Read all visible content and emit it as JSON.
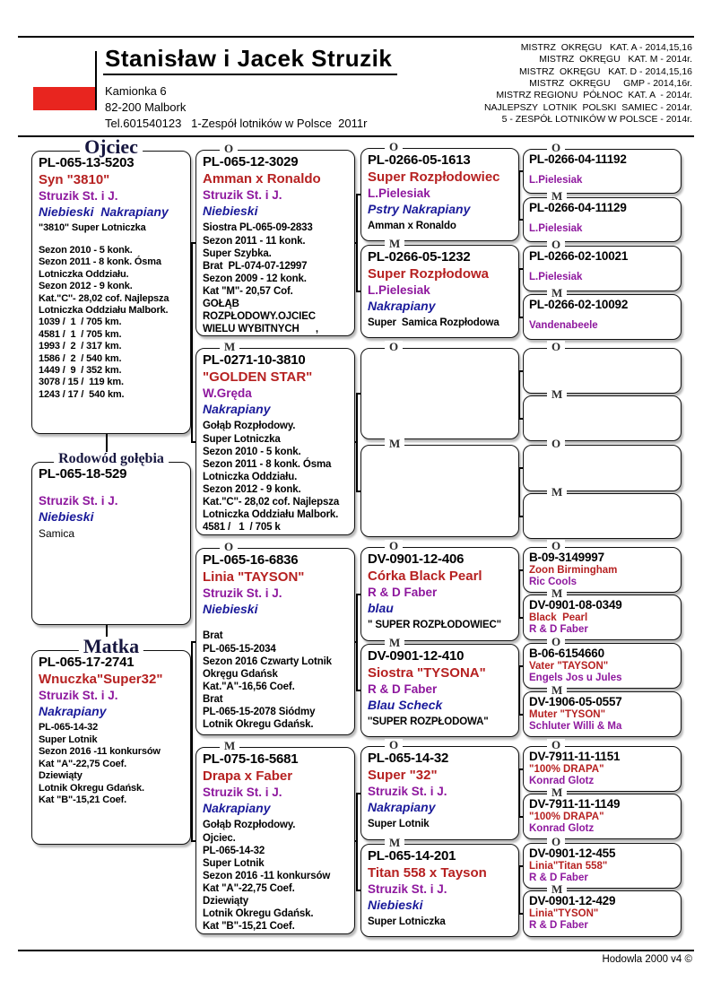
{
  "header": {
    "title": "Stanisław i Jacek Struzik",
    "address": "Kamionka 6\n82-200 Malbork\nTel.601540123   1-Zespół lotników w Polsce  2011r",
    "achievements": [
      "MISTRZ  OKRĘGU   KAT. A - 2014,15,16",
      "MISTRZ  OKRĘGU   KAT. M - 2014r.",
      "MISTRZ  OKRĘGU   KAT. D - 2014,15,16",
      "MISTRZ  OKRĘGU     GMP - 2014,16r.",
      "MISTRZ REGIONU  PÓŁNOC  KAT. A  - 2014r.",
      "NAJLEPSZY  LOTNIK  POLSKI  SAMIEC - 2014r.",
      "5 - ZESPÓŁ LOTNIKÓW W POLSCE - 2014r."
    ]
  },
  "footer": {
    "credit": "Hodowla 2000 v4 ©"
  },
  "colors": {
    "flag": "#e8251f",
    "red": "#b62121",
    "purple": "#8e189e",
    "navy": "#1a1a9a",
    "titlecol": "#16163f"
  },
  "boxes": {
    "father": {
      "label": "Ojciec",
      "lines": [
        [
          "ring",
          "PL-065-13-5203"
        ],
        [
          "name",
          "Syn \"3810\""
        ],
        [
          "breeder",
          "Struzik St. i J."
        ],
        [
          "color",
          "Niebieski  Nakrapiany"
        ],
        [
          "info",
          "\"3810\" Super Lotniczka"
        ],
        [
          "gap",
          ""
        ],
        [
          "info",
          "Sezon 2010 - 5 konk."
        ],
        [
          "info",
          "Sezon 2011 - 8 konk. Ósma"
        ],
        [
          "info",
          "Lotniczka Oddziału."
        ],
        [
          "info",
          "Sezon 2012 - 9 konk."
        ],
        [
          "info",
          "Kat.\"C''- 28,02 cof. Najlepsza"
        ],
        [
          "info",
          "Lotniczka Oddziału Malbork."
        ],
        [
          "info",
          "1039 /  1  / 705 km."
        ],
        [
          "info",
          "4581 /  1  / 705 km."
        ],
        [
          "info",
          "1993 /  2  / 317 km."
        ],
        [
          "info",
          "1586 /  2  / 540 km."
        ],
        [
          "info",
          "1449 /  9  / 352 km."
        ],
        [
          "info",
          "3078 / 15 /  119 km."
        ],
        [
          "info",
          "1243 / 17 /  540 km."
        ]
      ]
    },
    "pedigree": {
      "label": "Rodowód gołębia",
      "lines": [
        [
          "ring",
          "PL-065-18-529"
        ],
        [
          "gap",
          ""
        ],
        [
          "breeder",
          "Struzik St. i J."
        ],
        [
          "color",
          "Niebieski"
        ],
        [
          "text",
          "Samica"
        ]
      ]
    },
    "mother": {
      "label": "Matka",
      "lines": [
        [
          "ring",
          "PL-065-17-2741"
        ],
        [
          "name",
          "Wnuczka\"Super32\""
        ],
        [
          "breeder",
          "Struzik St. i J."
        ],
        [
          "color",
          "Nakrapiany"
        ],
        [
          "info",
          "PL-065-14-32"
        ],
        [
          "info",
          "Super Lotnik"
        ],
        [
          "info",
          "Sezon 2016 -11 konkursów"
        ],
        [
          "info",
          "Kat \"A\"-22,75 Coef."
        ],
        [
          "info",
          "Dziewiąty"
        ],
        [
          "info",
          "Lotnik Okregu Gdańsk."
        ],
        [
          "info",
          "Kat \"B\"-15,21 Coef."
        ]
      ]
    },
    "g1": {
      "label": "O",
      "lines": [
        [
          "ring",
          "PL-065-12-3029"
        ],
        [
          "name",
          "Amman x Ronaldo"
        ],
        [
          "breeder",
          "Struzik St. i J."
        ],
        [
          "color",
          "Niebieski"
        ],
        [
          "info",
          "Siostra PL-065-09-2833"
        ],
        [
          "info",
          "Sezon 2011 - 11 konk."
        ],
        [
          "info",
          "Super Szybka."
        ],
        [
          "info",
          "Brat  PL-074-07-12997"
        ],
        [
          "info",
          "Sezon 2009 - 12 konk."
        ],
        [
          "info",
          "Kat \"M\"- 20,57 Cof."
        ],
        [
          "info",
          "GOŁĄB"
        ],
        [
          "info",
          "ROZPŁODOWY.OJCIEC"
        ],
        [
          "info",
          "WIELU WYBITNYCH      ,"
        ]
      ]
    },
    "g2": {
      "label": "M",
      "lines": [
        [
          "ring",
          "PL-0271-10-3810"
        ],
        [
          "name",
          "\"GOLDEN STAR\""
        ],
        [
          "breeder",
          "W.Gręda"
        ],
        [
          "color",
          "Nakrapiany"
        ],
        [
          "info",
          "Gołąb Rozpłodowy."
        ],
        [
          "info",
          "Super Lotniczka"
        ],
        [
          "info",
          "Sezon 2010 - 5 konk."
        ],
        [
          "info",
          "Sezon 2011 - 8 konk. Ósma"
        ],
        [
          "info",
          "Lotniczka Oddziału."
        ],
        [
          "info",
          "Sezon 2012 - 9 konk."
        ],
        [
          "info",
          "Kat.\"C''- 28,02 cof. Najlepsza"
        ],
        [
          "info",
          "Lotniczka Oddziału Malbork."
        ],
        [
          "info",
          "4581 /   1  / 705 k"
        ]
      ]
    },
    "g3": {
      "label": "O",
      "lines": [
        [
          "ring",
          "PL-065-16-6836"
        ],
        [
          "name",
          "Linia \"TAYSON\""
        ],
        [
          "breeder",
          "Struzik St. i J."
        ],
        [
          "color",
          "Niebieski"
        ],
        [
          "gap",
          ""
        ],
        [
          "info",
          "Brat"
        ],
        [
          "info",
          "PL-065-15-2034"
        ],
        [
          "info",
          "Sezon 2016 Czwarty Lotnik"
        ],
        [
          "info",
          "Okręgu Gdańsk"
        ],
        [
          "info",
          "Kat.\"A\"-16,56 Coef."
        ],
        [
          "info",
          "Brat"
        ],
        [
          "info",
          "PL-065-15-2078 Siódmy"
        ],
        [
          "info",
          "Lotnik Okregu Gdańsk."
        ]
      ]
    },
    "g4": {
      "label": "M",
      "lines": [
        [
          "ring",
          "PL-075-16-5681"
        ],
        [
          "name",
          "Drapa x Faber"
        ],
        [
          "breeder",
          "Struzik St. i J."
        ],
        [
          "color",
          "Nakrapiany"
        ],
        [
          "info",
          "Gołąb Rozpłodowy."
        ],
        [
          "info",
          "Ojciec."
        ],
        [
          "info",
          "PL-065-14-32"
        ],
        [
          "info",
          "Super Lotnik"
        ],
        [
          "info",
          "Sezon 2016 -11 konkursów"
        ],
        [
          "info",
          "Kat \"A\"-22,75 Coef."
        ],
        [
          "info",
          "Dziewiąty"
        ],
        [
          "info",
          "Lotnik Okregu Gdańsk."
        ],
        [
          "info",
          "Kat \"B\"-15,21 Coef."
        ]
      ]
    },
    "gg1": {
      "label": "O",
      "lines": [
        [
          "ring",
          "PL-0266-05-1613"
        ],
        [
          "name",
          "Super Rozpłodowiec"
        ],
        [
          "breeder",
          "L.Pielesiak"
        ],
        [
          "color",
          "Pstry Nakrapiany"
        ],
        [
          "info",
          "Amman x Ronaldo"
        ]
      ]
    },
    "gg2": {
      "label": "M",
      "lines": [
        [
          "ring",
          "PL-0266-05-1232"
        ],
        [
          "name",
          "Super Rozpłodowa"
        ],
        [
          "breeder",
          "L.Pielesiak"
        ],
        [
          "color",
          "Nakrapiany"
        ],
        [
          "info",
          "Super  Samica Rozpłodowa"
        ]
      ]
    },
    "gg3": {
      "label": "O",
      "lines": []
    },
    "gg4": {
      "label": "M",
      "lines": []
    },
    "gg5": {
      "label": "O",
      "lines": [
        [
          "ring",
          "DV-0901-12-406"
        ],
        [
          "name",
          "Córka Black Pearl"
        ],
        [
          "breeder",
          "R & D Faber"
        ],
        [
          "color",
          "blau"
        ],
        [
          "info",
          "\" SUPER ROZPŁODOWIEC\""
        ]
      ]
    },
    "gg6": {
      "label": "M",
      "lines": [
        [
          "ring",
          "DV-0901-12-410"
        ],
        [
          "name",
          "Siostra \"TYSONA\""
        ],
        [
          "breeder",
          "R & D Faber"
        ],
        [
          "color",
          "Blau Scheck"
        ],
        [
          "info",
          "''SUPER ROZPŁODOWA\""
        ]
      ]
    },
    "gg7": {
      "label": "O",
      "lines": [
        [
          "ring",
          "PL-065-14-32"
        ],
        [
          "name",
          "Super \"32\""
        ],
        [
          "breeder",
          "Struzik St. i J."
        ],
        [
          "color",
          "Nakrapiany"
        ],
        [
          "info",
          "Super Lotnik"
        ]
      ]
    },
    "gg8": {
      "label": "M",
      "lines": [
        [
          "ring",
          "PL-065-14-201"
        ],
        [
          "name",
          "Titan 558 x Tayson"
        ],
        [
          "breeder",
          "Struzik St. i J."
        ],
        [
          "color",
          "Niebieski"
        ],
        [
          "info",
          "Super Lotniczka"
        ]
      ]
    },
    "ggg1": {
      "label": "O",
      "lines": [
        [
          "ring",
          "PL-0266-04-11192"
        ],
        [
          "gapsm",
          ""
        ],
        [
          "breeder",
          "L.Pielesiak"
        ]
      ]
    },
    "ggg2": {
      "label": "M",
      "lines": [
        [
          "ring",
          "PL-0266-04-11129"
        ],
        [
          "gapsm",
          ""
        ],
        [
          "breeder",
          "L.Pielesiak"
        ]
      ]
    },
    "ggg3": {
      "label": "O",
      "lines": [
        [
          "ring",
          "PL-0266-02-10021"
        ],
        [
          "gapsm",
          ""
        ],
        [
          "breeder",
          "L.Pielesiak"
        ]
      ]
    },
    "ggg4": {
      "label": "M",
      "lines": [
        [
          "ring",
          "PL-0266-02-10092"
        ],
        [
          "gapsm",
          ""
        ],
        [
          "breeder",
          "Vandenabeele"
        ]
      ]
    },
    "ggg5": {
      "label": "O",
      "lines": []
    },
    "ggg6": {
      "label": "M",
      "lines": []
    },
    "ggg7": {
      "label": "O",
      "lines": []
    },
    "ggg8": {
      "label": "M",
      "lines": []
    },
    "ggg9": {
      "label": "O",
      "lines": [
        [
          "ring",
          "B-09-3149997"
        ],
        [
          "name",
          "Zoon Birmingham"
        ],
        [
          "breeder",
          "Ric Cools"
        ]
      ]
    },
    "ggg10": {
      "label": "M",
      "lines": [
        [
          "ring",
          "DV-0901-08-0349"
        ],
        [
          "name",
          "Black  Pearl"
        ],
        [
          "breeder",
          "R & D Faber"
        ]
      ]
    },
    "ggg11": {
      "label": "O",
      "lines": [
        [
          "ring",
          "B-06-6154660"
        ],
        [
          "name",
          "Vater \"TAYSON\""
        ],
        [
          "breeder",
          "Engels Jos u Jules"
        ]
      ]
    },
    "ggg12": {
      "label": "M",
      "lines": [
        [
          "ring",
          "DV-1906-05-0557"
        ],
        [
          "name",
          "Muter \"TYSON\""
        ],
        [
          "breeder",
          "Schluter Willi & Ma"
        ]
      ]
    },
    "ggg13": {
      "label": "O",
      "lines": [
        [
          "ring",
          "DV-7911-11-1151"
        ],
        [
          "name",
          "\"100% DRAPA\""
        ],
        [
          "breeder",
          "Konrad Glotz"
        ]
      ]
    },
    "ggg14": {
      "label": "M",
      "lines": [
        [
          "ring",
          "DV-7911-11-1149"
        ],
        [
          "name",
          "\"100% DRAPA\""
        ],
        [
          "breeder",
          "Konrad Glotz"
        ]
      ]
    },
    "ggg15": {
      "label": "O",
      "lines": [
        [
          "ring",
          "DV-0901-12-455"
        ],
        [
          "name",
          "Linia\"Titan 558\""
        ],
        [
          "breeder",
          "R & D Faber"
        ]
      ]
    },
    "ggg16": {
      "label": "M",
      "lines": [
        [
          "ring",
          "DV-0901-12-429"
        ],
        [
          "name",
          "Linia\"TYSON\""
        ],
        [
          "breeder",
          "R & D Faber"
        ]
      ]
    }
  }
}
